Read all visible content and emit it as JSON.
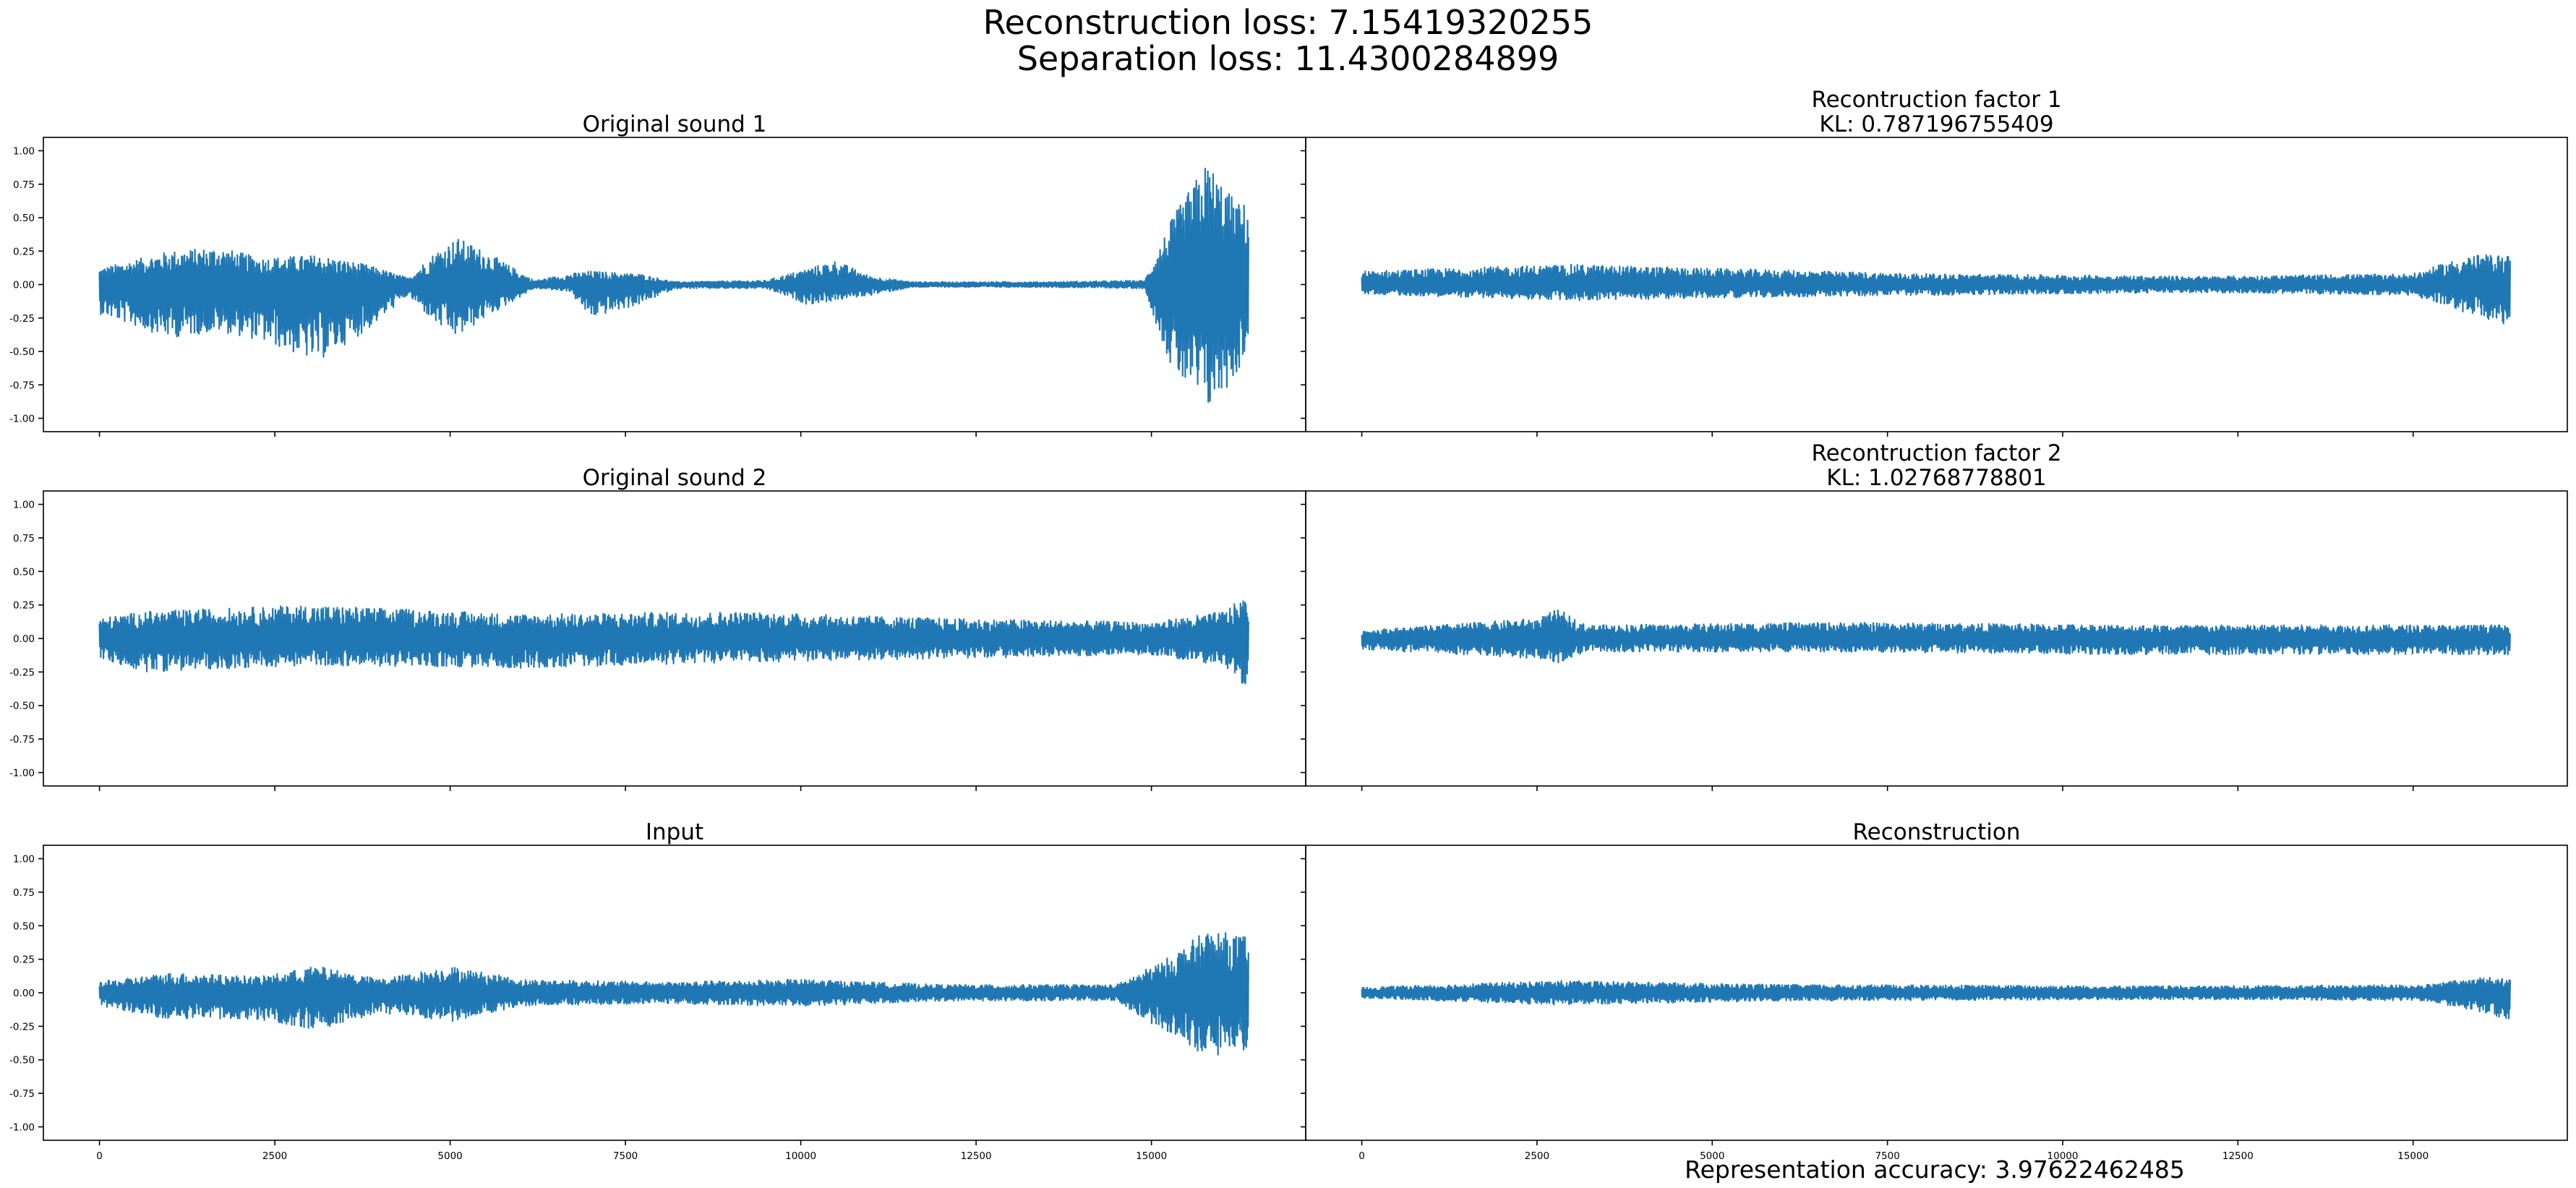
{
  "figure": {
    "suptitle_line1": "Reconstruction loss: 7.15419320255",
    "suptitle_line2": "Separation loss: 11.4300284899",
    "footer_text": "Representation accuracy: 3.97622462485",
    "line_color": "#1f77b4"
  },
  "chart_data": [
    {
      "type": "line",
      "title": "Original sound 1",
      "xlabel": "",
      "ylabel": "",
      "xlim": [
        -800,
        17200
      ],
      "ylim": [
        -1.1,
        1.1
      ],
      "xticks": [
        0,
        2500,
        5000,
        7500,
        10000,
        12500,
        15000
      ],
      "yticks": [
        -1.0,
        -0.75,
        -0.5,
        -0.25,
        0.0,
        0.25,
        0.5,
        0.75,
        1.0
      ],
      "x_tick_labels_shown": false,
      "y_tick_labels_shown": true,
      "series": [
        {
          "n_samples": 16384,
          "envelope": [
            {
              "x": 0,
              "top": 0.12,
              "bottom": -0.22
            },
            {
              "x": 1000,
              "top": 0.25,
              "bottom": -0.4
            },
            {
              "x": 1700,
              "top": 0.28,
              "bottom": -0.35
            },
            {
              "x": 2300,
              "top": 0.2,
              "bottom": -0.42
            },
            {
              "x": 3100,
              "top": 0.22,
              "bottom": -0.58
            },
            {
              "x": 3800,
              "top": 0.15,
              "bottom": -0.35
            },
            {
              "x": 4400,
              "top": 0.05,
              "bottom": -0.08
            },
            {
              "x": 4800,
              "top": 0.25,
              "bottom": -0.3
            },
            {
              "x": 5100,
              "top": 0.35,
              "bottom": -0.4
            },
            {
              "x": 5500,
              "top": 0.25,
              "bottom": -0.25
            },
            {
              "x": 6200,
              "top": 0.03,
              "bottom": -0.03
            },
            {
              "x": 6700,
              "top": 0.08,
              "bottom": -0.05
            },
            {
              "x": 7000,
              "top": 0.1,
              "bottom": -0.25
            },
            {
              "x": 7700,
              "top": 0.08,
              "bottom": -0.15
            },
            {
              "x": 8200,
              "top": 0.02,
              "bottom": -0.03
            },
            {
              "x": 9500,
              "top": 0.03,
              "bottom": -0.03
            },
            {
              "x": 10100,
              "top": 0.12,
              "bottom": -0.15
            },
            {
              "x": 10500,
              "top": 0.18,
              "bottom": -0.12
            },
            {
              "x": 11000,
              "top": 0.06,
              "bottom": -0.08
            },
            {
              "x": 11600,
              "top": 0.02,
              "bottom": -0.02
            },
            {
              "x": 13500,
              "top": 0.02,
              "bottom": -0.02
            },
            {
              "x": 14900,
              "top": 0.03,
              "bottom": -0.03
            },
            {
              "x": 15300,
              "top": 0.5,
              "bottom": -0.65
            },
            {
              "x": 15800,
              "top": 0.93,
              "bottom": -0.95
            },
            {
              "x": 16200,
              "top": 0.62,
              "bottom": -0.7
            },
            {
              "x": 16384,
              "top": 0.6,
              "bottom": -0.45
            }
          ]
        }
      ]
    },
    {
      "type": "line",
      "title": "Recontruction factor 1",
      "subtitle": "KL: 0.787196755409",
      "xlabel": "",
      "ylabel": "",
      "xlim": [
        -800,
        17200
      ],
      "ylim": [
        -1.1,
        1.1
      ],
      "xticks": [
        0,
        2500,
        5000,
        7500,
        10000,
        12500,
        15000
      ],
      "yticks": [
        -1.0,
        -0.75,
        -0.5,
        -0.25,
        0.0,
        0.25,
        0.5,
        0.75,
        1.0
      ],
      "x_tick_labels_shown": false,
      "y_tick_labels_shown": false,
      "series": [
        {
          "n_samples": 16384,
          "envelope": [
            {
              "x": 0,
              "top": 0.1,
              "bottom": -0.07
            },
            {
              "x": 3000,
              "top": 0.15,
              "bottom": -0.12
            },
            {
              "x": 5000,
              "top": 0.12,
              "bottom": -0.1
            },
            {
              "x": 8000,
              "top": 0.08,
              "bottom": -0.08
            },
            {
              "x": 12000,
              "top": 0.06,
              "bottom": -0.06
            },
            {
              "x": 15000,
              "top": 0.08,
              "bottom": -0.08
            },
            {
              "x": 15800,
              "top": 0.22,
              "bottom": -0.22
            },
            {
              "x": 16384,
              "top": 0.22,
              "bottom": -0.33
            }
          ]
        }
      ]
    },
    {
      "type": "line",
      "title": "Original sound 2",
      "xlabel": "",
      "ylabel": "",
      "xlim": [
        -800,
        17200
      ],
      "ylim": [
        -1.1,
        1.1
      ],
      "xticks": [
        0,
        2500,
        5000,
        7500,
        10000,
        12500,
        15000
      ],
      "yticks": [
        -1.0,
        -0.75,
        -0.5,
        -0.25,
        0.0,
        0.25,
        0.5,
        0.75,
        1.0
      ],
      "x_tick_labels_shown": false,
      "y_tick_labels_shown": true,
      "series": [
        {
          "n_samples": 16384,
          "envelope": [
            {
              "x": 0,
              "top": 0.15,
              "bottom": -0.15
            },
            {
              "x": 600,
              "top": 0.2,
              "bottom": -0.25
            },
            {
              "x": 3000,
              "top": 0.25,
              "bottom": -0.2
            },
            {
              "x": 6000,
              "top": 0.18,
              "bottom": -0.22
            },
            {
              "x": 9000,
              "top": 0.2,
              "bottom": -0.18
            },
            {
              "x": 12000,
              "top": 0.15,
              "bottom": -0.15
            },
            {
              "x": 15000,
              "top": 0.12,
              "bottom": -0.12
            },
            {
              "x": 16000,
              "top": 0.2,
              "bottom": -0.2
            },
            {
              "x": 16384,
              "top": 0.32,
              "bottom": -0.38
            }
          ]
        }
      ]
    },
    {
      "type": "line",
      "title": "Recontruction factor 2",
      "subtitle": "KL: 1.02768778801",
      "xlabel": "",
      "ylabel": "",
      "xlim": [
        -800,
        17200
      ],
      "ylim": [
        -1.1,
        1.1
      ],
      "xticks": [
        0,
        2500,
        5000,
        7500,
        10000,
        12500,
        15000
      ],
      "yticks": [
        -1.0,
        -0.75,
        -0.5,
        -0.25,
        0.0,
        0.25,
        0.5,
        0.75,
        1.0
      ],
      "x_tick_labels_shown": false,
      "y_tick_labels_shown": false,
      "series": [
        {
          "n_samples": 16384,
          "envelope": [
            {
              "x": 0,
              "top": 0.06,
              "bottom": -0.08
            },
            {
              "x": 2500,
              "top": 0.15,
              "bottom": -0.15
            },
            {
              "x": 2800,
              "top": 0.22,
              "bottom": -0.18
            },
            {
              "x": 3200,
              "top": 0.1,
              "bottom": -0.1
            },
            {
              "x": 7000,
              "top": 0.12,
              "bottom": -0.1
            },
            {
              "x": 11000,
              "top": 0.1,
              "bottom": -0.12
            },
            {
              "x": 15000,
              "top": 0.1,
              "bottom": -0.12
            },
            {
              "x": 16384,
              "top": 0.1,
              "bottom": -0.12
            }
          ]
        }
      ]
    },
    {
      "type": "line",
      "title": "Input",
      "xlabel": "",
      "ylabel": "",
      "xlim": [
        -800,
        17200
      ],
      "ylim": [
        -1.1,
        1.1
      ],
      "xticks": [
        0,
        2500,
        5000,
        7500,
        10000,
        12500,
        15000
      ],
      "yticks": [
        -1.0,
        -0.75,
        -0.5,
        -0.25,
        0.0,
        0.25,
        0.5,
        0.75,
        1.0
      ],
      "x_tick_labels_shown": true,
      "y_tick_labels_shown": true,
      "series": [
        {
          "n_samples": 16384,
          "envelope": [
            {
              "x": 0,
              "top": 0.08,
              "bottom": -0.1
            },
            {
              "x": 1000,
              "top": 0.15,
              "bottom": -0.2
            },
            {
              "x": 2300,
              "top": 0.12,
              "bottom": -0.2
            },
            {
              "x": 3100,
              "top": 0.2,
              "bottom": -0.28
            },
            {
              "x": 4000,
              "top": 0.1,
              "bottom": -0.15
            },
            {
              "x": 5000,
              "top": 0.2,
              "bottom": -0.22
            },
            {
              "x": 6000,
              "top": 0.1,
              "bottom": -0.1
            },
            {
              "x": 8000,
              "top": 0.08,
              "bottom": -0.08
            },
            {
              "x": 10000,
              "top": 0.1,
              "bottom": -0.1
            },
            {
              "x": 12000,
              "top": 0.06,
              "bottom": -0.06
            },
            {
              "x": 14500,
              "top": 0.06,
              "bottom": -0.06
            },
            {
              "x": 15200,
              "top": 0.25,
              "bottom": -0.3
            },
            {
              "x": 15800,
              "top": 0.47,
              "bottom": -0.48
            },
            {
              "x": 16384,
              "top": 0.42,
              "bottom": -0.42
            }
          ]
        }
      ]
    },
    {
      "type": "line",
      "title": "Reconstruction",
      "xlabel": "",
      "ylabel": "",
      "xlim": [
        -800,
        17200
      ],
      "ylim": [
        -1.1,
        1.1
      ],
      "xticks": [
        0,
        2500,
        5000,
        7500,
        10000,
        12500,
        15000
      ],
      "yticks": [
        -1.0,
        -0.75,
        -0.5,
        -0.25,
        0.0,
        0.25,
        0.5,
        0.75,
        1.0
      ],
      "x_tick_labels_shown": true,
      "y_tick_labels_shown": false,
      "series": [
        {
          "n_samples": 16384,
          "envelope": [
            {
              "x": 0,
              "top": 0.04,
              "bottom": -0.04
            },
            {
              "x": 2800,
              "top": 0.09,
              "bottom": -0.09
            },
            {
              "x": 6000,
              "top": 0.06,
              "bottom": -0.06
            },
            {
              "x": 12000,
              "top": 0.05,
              "bottom": -0.05
            },
            {
              "x": 15200,
              "top": 0.06,
              "bottom": -0.06
            },
            {
              "x": 16000,
              "top": 0.12,
              "bottom": -0.15
            },
            {
              "x": 16384,
              "top": 0.1,
              "bottom": -0.2
            }
          ]
        }
      ]
    }
  ]
}
